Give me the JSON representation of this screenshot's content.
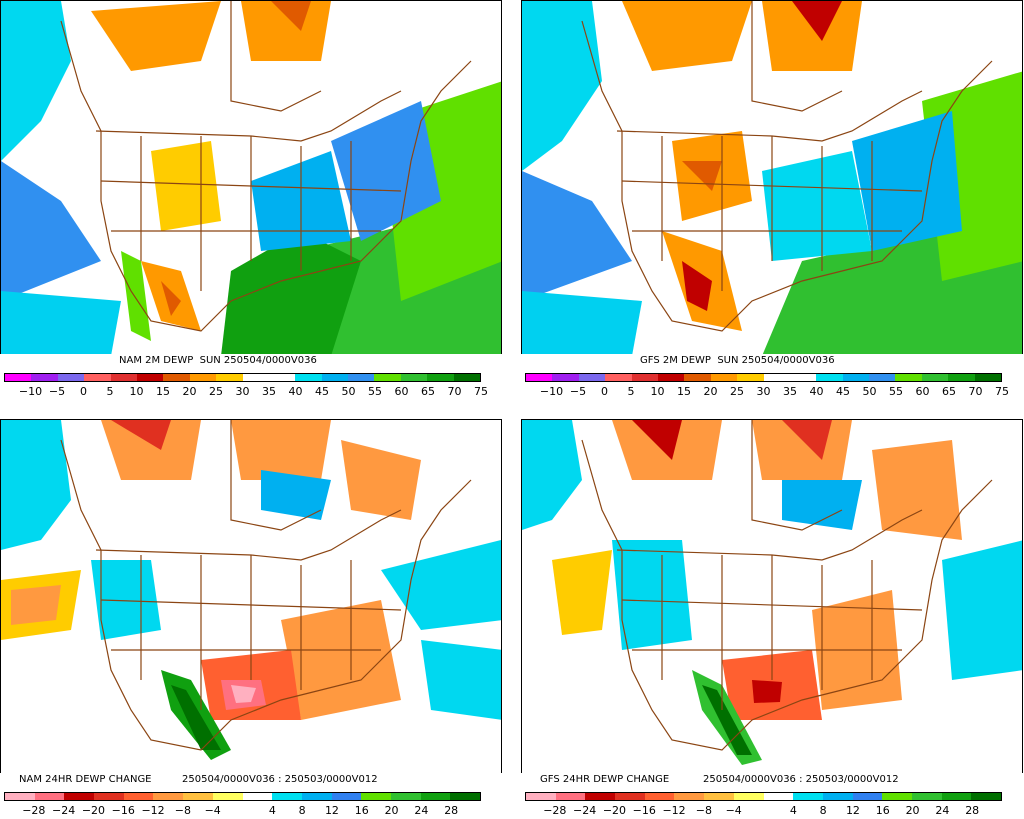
{
  "panels": [
    {
      "title": "NAM 2M DEWP  SUN 250504/0000V036",
      "ticks": [
        "−10",
        "−5",
        "0",
        "5",
        "10",
        "15",
        "20",
        "25",
        "30",
        "35",
        "40",
        "45",
        "50",
        "55",
        "60",
        "65",
        "70",
        "75"
      ],
      "colors": [
        "#ff00ff",
        "#a020f0",
        "#7b68ee",
        "#ff6060",
        "#e03030",
        "#c00000",
        "#e05a00",
        "#ff9900",
        "#ffcc00",
        "#ffffff",
        "#ffffff",
        "#00e0f0",
        "#00b0f0",
        "#3090f0",
        "#60e000",
        "#30c030",
        "#10a010",
        "#007000"
      ]
    },
    {
      "title": "GFS 2M DEWP  SUN 250504/0000V036",
      "ticks": [
        "−10",
        "−5",
        "0",
        "5",
        "10",
        "15",
        "20",
        "25",
        "30",
        "35",
        "40",
        "45",
        "50",
        "55",
        "60",
        "65",
        "70",
        "75"
      ],
      "colors": [
        "#ff00ff",
        "#a020f0",
        "#7b68ee",
        "#ff6060",
        "#e03030",
        "#c00000",
        "#e05a00",
        "#ff9900",
        "#ffcc00",
        "#ffffff",
        "#ffffff",
        "#00e0f0",
        "#00b0f0",
        "#3090f0",
        "#60e000",
        "#30c030",
        "#10a010",
        "#007000"
      ]
    },
    {
      "title_left": "NAM 24HR DEWP CHANGE",
      "title_right": "250504/0000V036 : 250503/0000V012",
      "ticks": [
        "−28",
        "−24",
        "−20",
        "−16",
        "−12",
        "−8",
        "−4",
        "4",
        "8",
        "12",
        "16",
        "20",
        "24",
        "28"
      ],
      "colors": [
        "#ffb0c0",
        "#ff7080",
        "#c00000",
        "#e03020",
        "#ff6030",
        "#ff9940",
        "#ffc040",
        "#ffff60",
        "#ffffff",
        "#00e0f0",
        "#00b0f0",
        "#3080f0",
        "#60e000",
        "#30c030",
        "#10a010",
        "#007000"
      ]
    },
    {
      "title_left": "GFS 24HR DEWP CHANGE",
      "title_right": "250504/0000V036 : 250503/0000V012",
      "ticks": [
        "−28",
        "−24",
        "−20",
        "−16",
        "−12",
        "−8",
        "−4",
        "4",
        "8",
        "12",
        "16",
        "20",
        "24",
        "28"
      ],
      "colors": [
        "#ffb0c0",
        "#ff7080",
        "#c00000",
        "#e03020",
        "#ff6030",
        "#ff9940",
        "#ffc040",
        "#ffff60",
        "#ffffff",
        "#00e0f0",
        "#00b0f0",
        "#3080f0",
        "#60e000",
        "#30c030",
        "#10a010",
        "#007000"
      ]
    }
  ]
}
